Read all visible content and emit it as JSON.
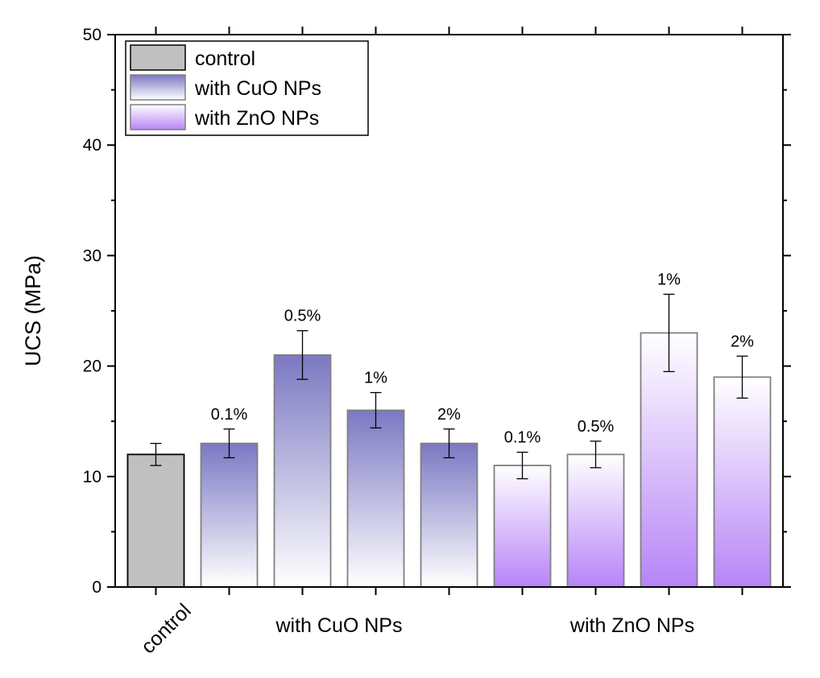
{
  "chart_data": {
    "type": "bar",
    "title": "",
    "xlabel": "",
    "ylabel": "UCS (MPa)",
    "ylim": [
      0,
      50
    ],
    "yticks": [
      0,
      10,
      20,
      30,
      40,
      50
    ],
    "grid": false,
    "legend_position": "top-left",
    "colors": {
      "control": "#c0c0c0",
      "cuo": "#7b78c2",
      "zno": "#b784f7",
      "outline": "#808080",
      "error_bar": "#000000"
    },
    "legend": [
      {
        "key": "control",
        "label": "control"
      },
      {
        "key": "cuo",
        "label": "with CuO NPs"
      },
      {
        "key": "zno",
        "label": "with ZnO NPs"
      }
    ],
    "group_labels": [
      "control",
      "with CuO NPs",
      "with ZnO NPs"
    ],
    "bars": [
      {
        "series": "control",
        "group": "control",
        "label": "",
        "value": 12,
        "error": 1.0
      },
      {
        "series": "cuo",
        "group": "with CuO NPs",
        "label": "0.1%",
        "value": 13,
        "error": 1.3
      },
      {
        "series": "cuo",
        "group": "with CuO NPs",
        "label": "0.5%",
        "value": 21,
        "error": 2.2
      },
      {
        "series": "cuo",
        "group": "with CuO NPs",
        "label": "1%",
        "value": 16,
        "error": 1.6
      },
      {
        "series": "cuo",
        "group": "with CuO NPs",
        "label": "2%",
        "value": 13,
        "error": 1.3
      },
      {
        "series": "zno",
        "group": "with ZnO NPs",
        "label": "0.1%",
        "value": 11,
        "error": 1.2
      },
      {
        "series": "zno",
        "group": "with ZnO NPs",
        "label": "0.5%",
        "value": 12,
        "error": 1.2
      },
      {
        "series": "zno",
        "group": "with ZnO NPs",
        "label": "1%",
        "value": 23,
        "error": 3.5
      },
      {
        "series": "zno",
        "group": "with ZnO NPs",
        "label": "2%",
        "value": 19,
        "error": 1.9
      }
    ]
  }
}
